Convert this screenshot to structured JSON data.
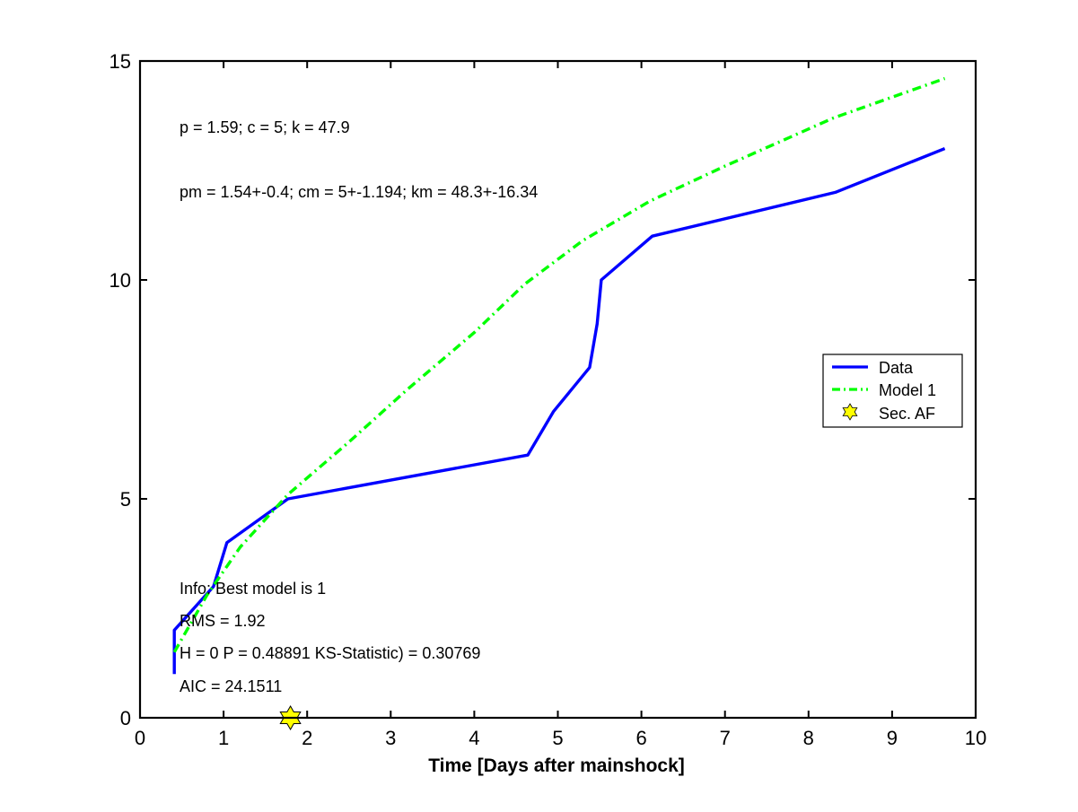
{
  "chart_data": {
    "type": "line",
    "title": "",
    "xlabel": "Time [Days after mainshock]",
    "ylabel": "",
    "xlim": [
      0,
      10
    ],
    "ylim": [
      0,
      15
    ],
    "xticks": [
      0,
      1,
      2,
      3,
      4,
      5,
      6,
      7,
      8,
      9,
      10
    ],
    "yticks": [
      0,
      5,
      10,
      15
    ],
    "grid": false,
    "legend_position": "right",
    "series": [
      {
        "name": "Data",
        "style": "solid",
        "color": "#0000ff",
        "x": [
          0.41,
          0.41,
          0.88,
          1.04,
          1.77,
          4.64,
          4.95,
          5.38,
          5.47,
          5.52,
          6.13,
          8.32,
          9.63
        ],
        "y": [
          1,
          2,
          3,
          4,
          5,
          6,
          7,
          8,
          9,
          10,
          11,
          12,
          13
        ]
      },
      {
        "name": "Model 1",
        "style": "dashdot",
        "color": "#00ff00",
        "x": [
          0.41,
          0.8,
          1.2,
          1.77,
          2.5,
          3.2,
          4.0,
          4.6,
          5.3,
          6.1,
          7.0,
          8.3,
          9.63
        ],
        "y": [
          1.5,
          2.8,
          3.9,
          5.1,
          6.3,
          7.5,
          8.8,
          9.9,
          10.9,
          11.8,
          12.6,
          13.7,
          14.6
        ]
      },
      {
        "name": "Sec. AF",
        "style": "marker",
        "marker": "hexagram",
        "color": "#ffff00",
        "x": [
          1.8
        ],
        "y": [
          0
        ]
      }
    ],
    "annotations": {
      "params": "p = 1.59; c = 5; k = 47.9",
      "params_mean": "pm = 1.54+-0.4; cm = 5+-1.194; km = 48.3+-16.34",
      "info": "Info: Best model is 1",
      "rms": "RMS = 1.92",
      "ks": "H = 0 P = 0.48891 KS-Statistic) = 0.30769",
      "aic": "AIC = 24.1511"
    }
  }
}
